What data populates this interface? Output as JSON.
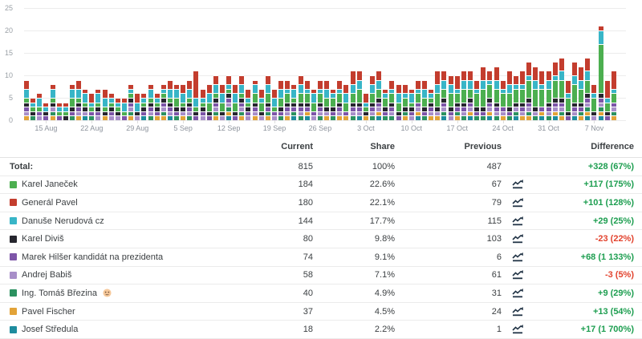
{
  "chart_data": {
    "type": "bar",
    "stacked": true,
    "title": "",
    "xlabel": "",
    "ylabel": "",
    "ylim": [
      0,
      25
    ],
    "yticks": [
      0,
      5,
      10,
      15,
      20,
      25
    ],
    "grid": true,
    "legend_position": "table-below",
    "tick_labels": [
      "15 Aug",
      "22 Aug",
      "29 Aug",
      "5 Sep",
      "12 Sep",
      "19 Sep",
      "26 Sep",
      "3 Oct",
      "10 Oct",
      "17 Oct",
      "24 Oct",
      "31 Oct",
      "7 Nov"
    ],
    "x": [
      "12 Aug",
      "13 Aug",
      "14 Aug",
      "15 Aug",
      "16 Aug",
      "17 Aug",
      "18 Aug",
      "19 Aug",
      "20 Aug",
      "21 Aug",
      "22 Aug",
      "23 Aug",
      "24 Aug",
      "25 Aug",
      "26 Aug",
      "27 Aug",
      "28 Aug",
      "29 Aug",
      "30 Aug",
      "31 Aug",
      "1 Sep",
      "2 Sep",
      "3 Sep",
      "4 Sep",
      "5 Sep",
      "6 Sep",
      "7 Sep",
      "8 Sep",
      "9 Sep",
      "10 Sep",
      "11 Sep",
      "12 Sep",
      "13 Sep",
      "14 Sep",
      "15 Sep",
      "16 Sep",
      "17 Sep",
      "18 Sep",
      "19 Sep",
      "20 Sep",
      "21 Sep",
      "22 Sep",
      "23 Sep",
      "24 Sep",
      "25 Sep",
      "26 Sep",
      "27 Sep",
      "28 Sep",
      "29 Sep",
      "30 Sep",
      "1 Oct",
      "2 Oct",
      "3 Oct",
      "4 Oct",
      "5 Oct",
      "6 Oct",
      "7 Oct",
      "8 Oct",
      "9 Oct",
      "10 Oct",
      "11 Oct",
      "12 Oct",
      "13 Oct",
      "14 Oct",
      "15 Oct",
      "16 Oct",
      "17 Oct",
      "18 Oct",
      "19 Oct",
      "20 Oct",
      "21 Oct",
      "22 Oct",
      "23 Oct",
      "24 Oct",
      "25 Oct",
      "26 Oct",
      "27 Oct",
      "28 Oct",
      "29 Oct",
      "30 Oct",
      "31 Oct",
      "1 Nov",
      "2 Nov",
      "3 Nov",
      "4 Nov",
      "5 Nov",
      "6 Nov",
      "7 Nov",
      "8 Nov",
      "9 Nov",
      "10 Nov"
    ],
    "stack_bottom_to_top": [
      "Josef Středula",
      "Pavel Fischer",
      "Ing. Tomáš Březina",
      "Andrej Babiš",
      "Marek Hilšer kandidát na prezidenta",
      "Karel Diviš",
      "Karel Janeček",
      "Danuše Nerudová cz",
      "Generál Pavel"
    ],
    "series": [
      {
        "name": "Karel Janeček",
        "color": "#4caf50",
        "values": [
          1,
          1,
          1,
          0,
          1,
          1,
          1,
          2,
          1,
          1,
          1,
          1,
          1,
          1,
          1,
          1,
          1,
          0,
          1,
          1,
          1,
          1,
          1,
          2,
          1,
          1,
          1,
          1,
          2,
          1,
          2,
          1,
          2,
          1,
          1,
          2,
          2,
          2,
          1,
          2,
          2,
          1,
          2,
          2,
          2,
          2,
          2,
          2,
          2,
          2,
          2,
          3,
          1,
          2,
          2,
          2,
          2,
          2,
          2,
          1,
          2,
          2,
          1,
          3,
          2,
          3,
          2,
          3,
          2,
          3,
          4,
          3,
          3,
          3,
          3,
          3,
          3,
          4,
          4,
          4,
          3,
          4,
          4,
          3,
          4,
          3,
          3,
          3,
          11,
          2,
          2
        ]
      },
      {
        "name": "Generál Pavel",
        "color": "#c33d2e",
        "values": [
          2,
          1,
          1,
          1,
          1,
          1,
          1,
          1,
          2,
          1,
          2,
          1,
          2,
          1,
          1,
          1,
          1,
          2,
          1,
          1,
          1,
          1,
          2,
          1,
          2,
          2,
          6,
          2,
          2,
          2,
          2,
          2,
          2,
          2,
          2,
          1,
          2,
          2,
          2,
          2,
          2,
          1,
          2,
          2,
          1,
          2,
          2,
          1,
          2,
          2,
          3,
          2,
          2,
          2,
          2,
          1,
          2,
          2,
          2,
          1,
          2,
          2,
          1,
          3,
          2,
          2,
          3,
          2,
          2,
          2,
          3,
          2,
          3,
          2,
          3,
          2,
          3,
          3,
          3,
          3,
          2,
          3,
          3,
          3,
          3,
          3,
          3,
          2,
          1,
          4,
          4
        ]
      },
      {
        "name": "Danuše Nerudová cz",
        "color": "#38b5c7",
        "values": [
          2,
          1,
          2,
          1,
          2,
          1,
          1,
          2,
          2,
          2,
          1,
          2,
          2,
          1,
          1,
          2,
          1,
          2,
          1,
          2,
          1,
          1,
          2,
          2,
          2,
          2,
          2,
          1,
          2,
          2,
          2,
          1,
          2,
          2,
          1,
          2,
          1,
          2,
          2,
          2,
          1,
          2,
          2,
          1,
          2,
          1,
          2,
          1,
          1,
          2,
          2,
          2,
          1,
          2,
          2,
          1,
          1,
          2,
          1,
          2,
          1,
          2,
          1,
          2,
          2,
          2,
          1,
          2,
          2,
          1,
          2,
          1,
          2,
          1,
          2,
          1,
          1,
          1,
          2,
          1,
          2,
          1,
          2,
          1,
          2,
          2,
          2,
          1,
          3,
          1,
          1
        ]
      },
      {
        "name": "Karel Diviš",
        "color": "#26262e",
        "values": [
          1,
          1,
          0,
          1,
          1,
          0,
          1,
          1,
          1,
          1,
          0,
          1,
          1,
          1,
          1,
          0,
          1,
          1,
          1,
          1,
          1,
          1,
          1,
          1,
          1,
          1,
          1,
          1,
          1,
          1,
          1,
          1,
          1,
          1,
          1,
          1,
          1,
          1,
          0,
          1,
          1,
          1,
          1,
          1,
          0,
          1,
          1,
          1,
          1,
          0,
          1,
          1,
          1,
          1,
          1,
          1,
          1,
          1,
          1,
          1,
          0,
          1,
          1,
          1,
          1,
          1,
          1,
          1,
          1,
          1,
          1,
          1,
          1,
          0,
          1,
          1,
          1,
          1,
          1,
          0,
          1,
          1,
          1,
          1,
          1,
          1,
          1,
          1,
          1,
          1,
          0
        ]
      },
      {
        "name": "Marek Hilšer kandidát na prezidenta",
        "color": "#7d55a8",
        "values": [
          1,
          0,
          1,
          1,
          0,
          1,
          0,
          1,
          1,
          0,
          1,
          1,
          0,
          1,
          0,
          1,
          1,
          0,
          1,
          1,
          1,
          1,
          1,
          1,
          0,
          1,
          1,
          1,
          1,
          1,
          0,
          1,
          1,
          1,
          1,
          1,
          0,
          1,
          1,
          1,
          1,
          1,
          1,
          1,
          1,
          1,
          0,
          1,
          1,
          1,
          1,
          1,
          0,
          1,
          1,
          1,
          1,
          1,
          0,
          1,
          1,
          1,
          1,
          0,
          1,
          1,
          1,
          1,
          1,
          1,
          1,
          1,
          1,
          1,
          1,
          0,
          1,
          1,
          0,
          1,
          1,
          1,
          1,
          1,
          1,
          1,
          1,
          0,
          1,
          1,
          1
        ]
      },
      {
        "name": "Andrej Babiš",
        "color": "#a88fc9",
        "values": [
          1,
          0,
          1,
          0,
          1,
          0,
          0,
          0,
          1,
          1,
          0,
          1,
          0,
          1,
          1,
          0,
          1,
          1,
          0,
          1,
          0,
          1,
          1,
          0,
          1,
          1,
          0,
          1,
          0,
          1,
          1,
          1,
          0,
          1,
          1,
          1,
          1,
          0,
          1,
          0,
          1,
          0,
          1,
          0,
          1,
          1,
          1,
          0,
          1,
          0,
          1,
          1,
          0,
          1,
          1,
          0,
          1,
          0,
          0,
          1,
          1,
          0,
          1,
          1,
          1,
          1,
          0,
          1,
          1,
          0,
          0,
          1,
          1,
          1,
          0,
          1,
          1,
          1,
          1,
          0,
          1,
          1,
          1,
          0,
          1,
          0,
          1,
          1,
          1,
          0,
          1
        ]
      },
      {
        "name": "Ing. Tomáš Březina",
        "color": "#2c9160",
        "values": [
          0,
          1,
          0,
          0,
          1,
          0,
          0,
          1,
          0,
          0,
          1,
          0,
          0,
          0,
          0,
          0,
          1,
          0,
          0,
          1,
          0,
          1,
          0,
          1,
          0,
          1,
          0,
          0,
          0,
          1,
          0,
          1,
          0,
          1,
          0,
          0,
          0,
          1,
          0,
          1,
          0,
          1,
          1,
          0,
          0,
          1,
          0,
          1,
          0,
          0,
          1,
          0,
          0,
          1,
          0,
          1,
          1,
          0,
          1,
          0,
          0,
          1,
          0,
          0,
          1,
          0,
          1,
          1,
          0,
          1,
          1,
          0,
          1,
          0,
          1,
          1,
          0,
          1,
          1,
          0,
          1,
          0,
          1,
          0,
          0,
          1,
          1,
          0,
          1,
          0,
          1
        ]
      },
      {
        "name": "Pavel Fischer",
        "color": "#e2a338",
        "values": [
          1,
          0,
          0,
          0,
          1,
          0,
          0,
          0,
          1,
          0,
          0,
          0,
          1,
          0,
          0,
          0,
          1,
          0,
          0,
          0,
          1,
          1,
          0,
          0,
          1,
          0,
          0,
          0,
          0,
          1,
          0,
          1,
          0,
          1,
          0,
          1,
          0,
          1,
          0,
          0,
          1,
          0,
          0,
          1,
          0,
          0,
          1,
          0,
          1,
          1,
          0,
          0,
          1,
          0,
          1,
          0,
          0,
          0,
          1,
          0,
          1,
          0,
          1,
          1,
          0,
          0,
          1,
          0,
          1,
          0,
          0,
          1,
          0,
          1,
          0,
          0,
          1,
          1,
          0,
          1,
          0,
          1,
          1,
          0,
          0,
          1,
          1,
          0,
          1,
          0,
          1
        ]
      },
      {
        "name": "Josef Středula",
        "color": "#1e8c9e",
        "values": [
          0,
          0,
          0,
          0,
          0,
          0,
          0,
          0,
          0,
          1,
          0,
          0,
          0,
          0,
          0,
          0,
          0,
          0,
          1,
          0,
          0,
          0,
          1,
          0,
          0,
          0,
          0,
          0,
          0,
          0,
          0,
          1,
          0,
          0,
          0,
          0,
          0,
          0,
          0,
          0,
          0,
          1,
          0,
          1,
          0,
          0,
          0,
          0,
          0,
          0,
          0,
          1,
          0,
          0,
          1,
          0,
          0,
          0,
          0,
          0,
          1,
          0,
          0,
          0,
          1,
          0,
          0,
          0,
          1,
          0,
          0,
          1,
          0,
          0,
          0,
          1,
          0,
          0,
          0,
          1,
          0,
          1,
          0,
          0,
          1,
          0,
          1,
          0,
          1,
          0,
          0
        ]
      }
    ]
  },
  "table": {
    "columns": [
      "Current",
      "Share",
      "Previous",
      "Difference"
    ],
    "total": {
      "label": "Total:",
      "current": "815",
      "share": "100%",
      "previous": "487",
      "difference": "+328 (67%)",
      "positive": true
    },
    "rows": [
      {
        "name": "Karel Janeček",
        "color": "#4caf50",
        "current": "184",
        "share": "22.6%",
        "previous": "67",
        "difference": "+117 (175%)",
        "positive": true,
        "emoji": false
      },
      {
        "name": "Generál Pavel",
        "color": "#c33d2e",
        "current": "180",
        "share": "22.1%",
        "previous": "79",
        "difference": "+101 (128%)",
        "positive": true,
        "emoji": false
      },
      {
        "name": "Danuše Nerudová cz",
        "color": "#38b5c7",
        "current": "144",
        "share": "17.7%",
        "previous": "115",
        "difference": "+29 (25%)",
        "positive": true,
        "emoji": false
      },
      {
        "name": "Karel Diviš",
        "color": "#26262e",
        "current": "80",
        "share": "9.8%",
        "previous": "103",
        "difference": "-23 (22%)",
        "positive": false,
        "emoji": false
      },
      {
        "name": "Marek Hilšer kandidát na prezidenta",
        "color": "#7d55a8",
        "current": "74",
        "share": "9.1%",
        "previous": "6",
        "difference": "+68 (1 133%)",
        "positive": true,
        "emoji": false
      },
      {
        "name": "Andrej Babiš",
        "color": "#a88fc9",
        "current": "58",
        "share": "7.1%",
        "previous": "61",
        "difference": "-3 (5%)",
        "positive": false,
        "emoji": false
      },
      {
        "name": "Ing. Tomáš Březina",
        "color": "#2c9160",
        "current": "40",
        "share": "4.9%",
        "previous": "31",
        "difference": "+9 (29%)",
        "positive": true,
        "emoji": true
      },
      {
        "name": "Pavel Fischer",
        "color": "#e2a338",
        "current": "37",
        "share": "4.5%",
        "previous": "24",
        "difference": "+13 (54%)",
        "positive": true,
        "emoji": false
      },
      {
        "name": "Josef Středula",
        "color": "#1e8c9e",
        "current": "18",
        "share": "2.2%",
        "previous": "1",
        "difference": "+17 (1 700%)",
        "positive": true,
        "emoji": false
      }
    ]
  },
  "colors": {
    "positive": "#1d9e50",
    "negative": "#e2432e",
    "gridline": "#ececec",
    "axis_text": "#9aa0a6"
  },
  "icons": {
    "trend": "trend-line-icon",
    "emoji": "elderly-face-emoji"
  }
}
